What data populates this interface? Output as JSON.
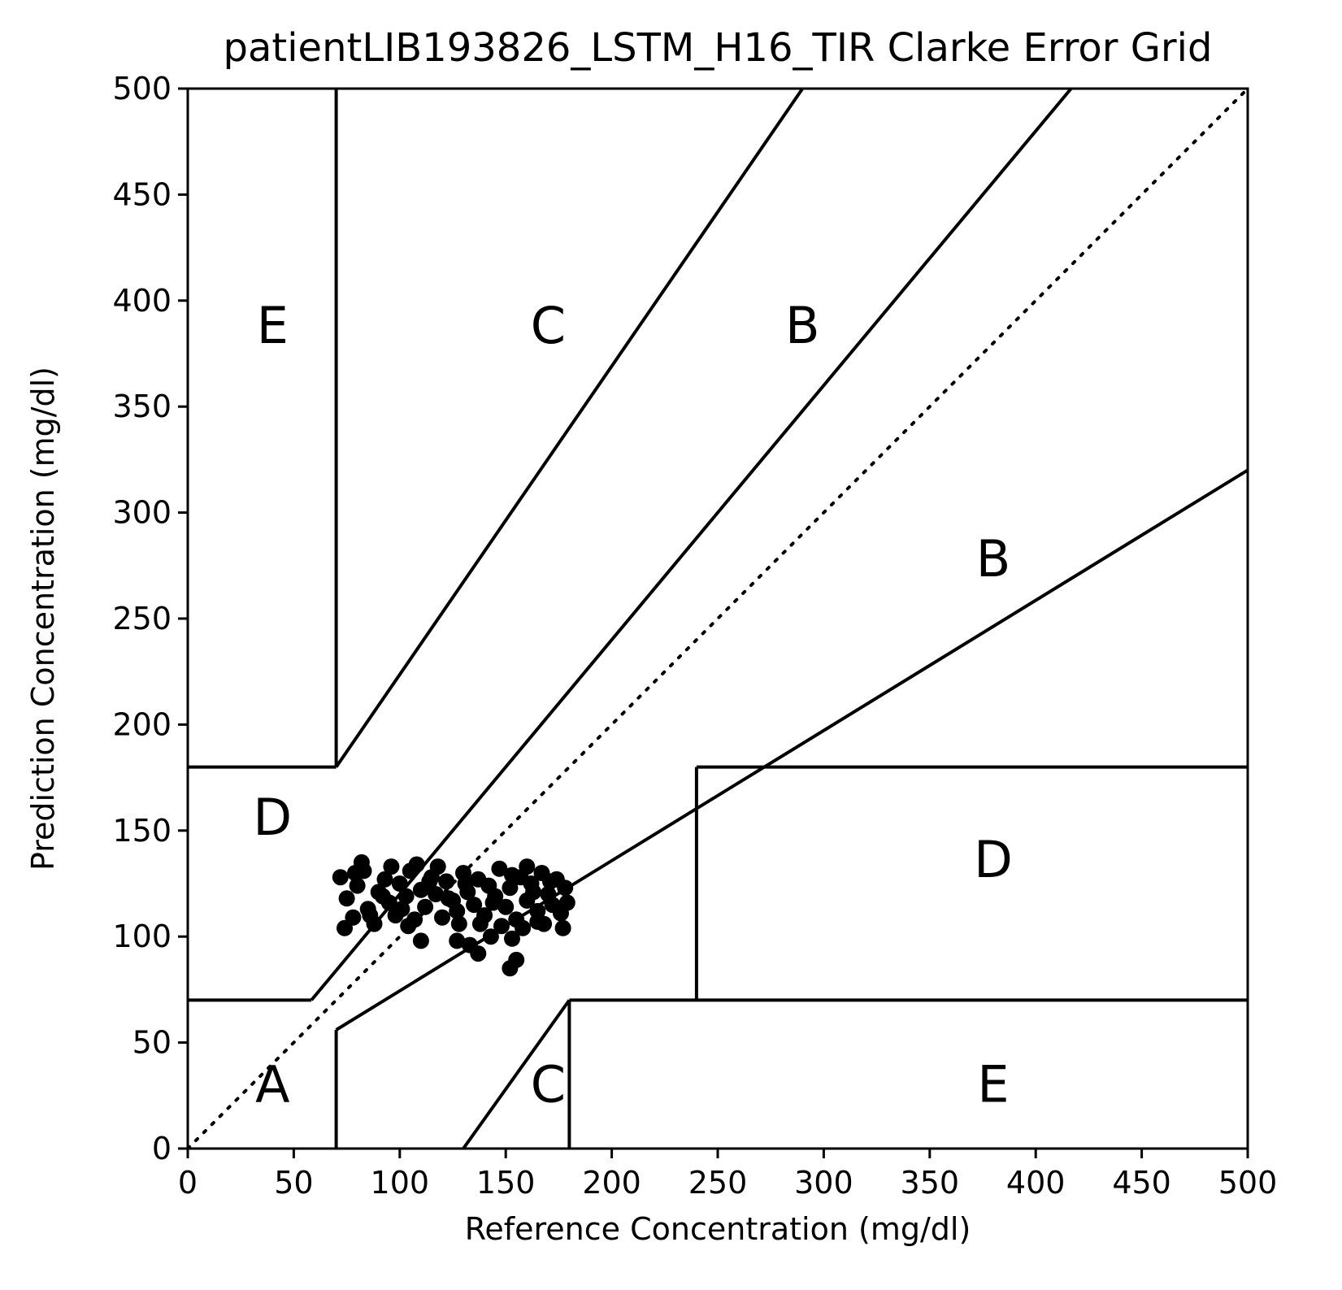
{
  "chart_data": {
    "type": "scatter",
    "title": "patientLIB193826_LSTM_H16_TIR Clarke Error Grid",
    "xlabel": "Reference Concentration (mg/dl)",
    "ylabel": "Prediction Concentration (mg/dl)",
    "xlim": [
      0,
      500
    ],
    "ylim": [
      0,
      500
    ],
    "xticks": [
      "0",
      "50",
      "100",
      "150",
      "200",
      "250",
      "300",
      "350",
      "400",
      "450",
      "500"
    ],
    "yticks": [
      "0",
      "50",
      "100",
      "150",
      "200",
      "250",
      "300",
      "350",
      "400",
      "450",
      "500"
    ],
    "zone_labels": [
      {
        "text": "A",
        "x": 40,
        "y": 22
      },
      {
        "text": "B",
        "x": 290,
        "y": 380
      },
      {
        "text": "B",
        "x": 380,
        "y": 270
      },
      {
        "text": "C",
        "x": 170,
        "y": 380
      },
      {
        "text": "C",
        "x": 170,
        "y": 22
      },
      {
        "text": "D",
        "x": 40,
        "y": 148
      },
      {
        "text": "D",
        "x": 380,
        "y": 128
      },
      {
        "text": "E",
        "x": 40,
        "y": 380
      },
      {
        "text": "E",
        "x": 380,
        "y": 22
      }
    ],
    "zone_lines": [
      {
        "name": "identity-line",
        "style": "dotted",
        "points": [
          [
            0,
            0
          ],
          [
            500,
            500
          ]
        ]
      },
      {
        "name": "e-upper-vertical",
        "points": [
          [
            70,
            180
          ],
          [
            70,
            500
          ]
        ]
      },
      {
        "name": "d-upper-top",
        "points": [
          [
            0,
            180
          ],
          [
            70,
            180
          ]
        ]
      },
      {
        "name": "c-upper-boundary",
        "points": [
          [
            70,
            180
          ],
          [
            290,
            500
          ]
        ]
      },
      {
        "name": "b-upper-boundary",
        "points": [
          [
            70,
            84
          ],
          [
            416.67,
            500
          ]
        ]
      },
      {
        "name": "b-upper-low-segment",
        "points": [
          [
            58.33,
            70
          ],
          [
            70,
            84
          ]
        ]
      },
      {
        "name": "a-top",
        "points": [
          [
            0,
            70
          ],
          [
            58.33,
            70
          ]
        ]
      },
      {
        "name": "b-lower-vertical",
        "points": [
          [
            70,
            0
          ],
          [
            70,
            56
          ]
        ]
      },
      {
        "name": "b-lower-boundary",
        "points": [
          [
            70,
            56
          ],
          [
            500,
            320
          ]
        ]
      },
      {
        "name": "c-lower-boundary",
        "points": [
          [
            130,
            0
          ],
          [
            180,
            70
          ]
        ]
      },
      {
        "name": "e-lower-vertical",
        "points": [
          [
            180,
            0
          ],
          [
            180,
            70
          ]
        ]
      },
      {
        "name": "e-lower-top",
        "points": [
          [
            180,
            70
          ],
          [
            500,
            70
          ]
        ]
      },
      {
        "name": "d-lower-left",
        "points": [
          [
            240,
            70
          ],
          [
            240,
            180
          ]
        ]
      },
      {
        "name": "d-lower-top",
        "points": [
          [
            240,
            180
          ],
          [
            500,
            180
          ]
        ]
      }
    ],
    "series": [
      {
        "name": "predictions",
        "points": [
          [
            72,
            128
          ],
          [
            75,
            118
          ],
          [
            78,
            109
          ],
          [
            80,
            124
          ],
          [
            83,
            131
          ],
          [
            85,
            113
          ],
          [
            88,
            106
          ],
          [
            90,
            121
          ],
          [
            93,
            127
          ],
          [
            95,
            116
          ],
          [
            98,
            110
          ],
          [
            100,
            125
          ],
          [
            103,
            119
          ],
          [
            105,
            131
          ],
          [
            107,
            108
          ],
          [
            110,
            122
          ],
          [
            112,
            114
          ],
          [
            115,
            128
          ],
          [
            117,
            120
          ],
          [
            120,
            109
          ],
          [
            122,
            126
          ],
          [
            125,
            117
          ],
          [
            127,
            112
          ],
          [
            130,
            130
          ],
          [
            132,
            121
          ],
          [
            135,
            115
          ],
          [
            137,
            127
          ],
          [
            140,
            110
          ],
          [
            142,
            124
          ],
          [
            145,
            119
          ],
          [
            147,
            132
          ],
          [
            150,
            114
          ],
          [
            152,
            123
          ],
          [
            155,
            108
          ],
          [
            157,
            128
          ],
          [
            160,
            117
          ],
          [
            162,
            125
          ],
          [
            165,
            112
          ],
          [
            167,
            130
          ],
          [
            170,
            120
          ],
          [
            172,
            115
          ],
          [
            174,
            127
          ],
          [
            176,
            111
          ],
          [
            178,
            123
          ],
          [
            74,
            104
          ],
          [
            82,
            135
          ],
          [
            96,
            133
          ],
          [
            108,
            134
          ],
          [
            118,
            133
          ],
          [
            128,
            106
          ],
          [
            138,
            106
          ],
          [
            148,
            105
          ],
          [
            158,
            104
          ],
          [
            168,
            106
          ],
          [
            177,
            104
          ],
          [
            110,
            98
          ],
          [
            127,
            98
          ],
          [
            133,
            96
          ],
          [
            137,
            92
          ],
          [
            143,
            100
          ],
          [
            153,
            99
          ],
          [
            155,
            89
          ],
          [
            152,
            85
          ],
          [
            86,
            110
          ],
          [
            92,
            119
          ],
          [
            101,
            113
          ],
          [
            114,
            126
          ],
          [
            123,
            118
          ],
          [
            131,
            125
          ],
          [
            144,
            116
          ],
          [
            153,
            129
          ],
          [
            163,
            121
          ],
          [
            171,
            126
          ],
          [
            179,
            116
          ],
          [
            160,
            133
          ],
          [
            165,
            107
          ],
          [
            79,
            130
          ],
          [
            104,
            105
          ]
        ]
      }
    ]
  }
}
